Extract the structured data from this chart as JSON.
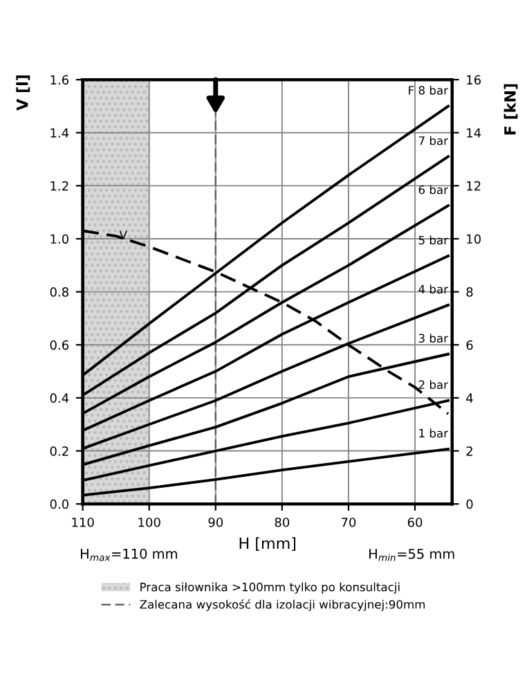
{
  "chart_data": {
    "type": "line",
    "xlabel": "H [mm]",
    "ylabel": "V [l]",
    "y2label": "F [kN]",
    "x": [
      110,
      100,
      90,
      80,
      70,
      55
    ],
    "series": [
      {
        "name": "F 8 bar",
        "color": "#000000",
        "axis": "y2",
        "values": [
          4.85,
          6.8,
          8.7,
          10.6,
          12.4,
          15.0
        ]
      },
      {
        "name": "7 bar",
        "color": "#000000",
        "axis": "y2",
        "values": [
          4.1,
          5.7,
          7.2,
          9.0,
          10.6,
          13.1
        ]
      },
      {
        "name": "6 bar",
        "color": "#000000",
        "axis": "y2",
        "values": [
          3.41,
          4.8,
          6.1,
          7.6,
          9.0,
          11.25
        ]
      },
      {
        "name": "5 bar",
        "color": "#000000",
        "axis": "y2",
        "values": [
          2.77,
          3.9,
          5.0,
          6.4,
          7.6,
          9.35
        ]
      },
      {
        "name": "4 bar",
        "color": "#000000",
        "axis": "y2",
        "values": [
          2.09,
          3.0,
          3.9,
          5.0,
          6.05,
          7.5
        ]
      },
      {
        "name": "3 bar",
        "color": "#000000",
        "axis": "y2",
        "values": [
          1.48,
          2.2,
          2.9,
          3.8,
          4.8,
          5.65
        ]
      },
      {
        "name": "2 bar",
        "color": "#000000",
        "axis": "y2",
        "values": [
          0.89,
          1.45,
          2.0,
          2.55,
          3.05,
          3.9
        ]
      },
      {
        "name": "1 bar",
        "color": "#000000",
        "axis": "y2",
        "values": [
          0.33,
          0.6,
          0.92,
          1.28,
          1.6,
          2.07
        ]
      },
      {
        "name": "V",
        "color": "#000000",
        "line_style": "dashed",
        "x": [
          110,
          105,
          100,
          90,
          80,
          75,
          70,
          64,
          60,
          55
        ],
        "values": [
          1.03,
          1.01,
          0.97,
          0.875,
          0.76,
          0.69,
          0.6,
          0.5,
          0.44,
          0.34
        ]
      }
    ],
    "xlim": [
      110,
      54.4
    ],
    "xticks": [
      110,
      100,
      90,
      80,
      70,
      60
    ],
    "ylim": [
      0.0,
      1.6
    ],
    "yticks": [
      {
        "value": 0,
        "label": "0.0"
      },
      0.2,
      0.4,
      0.6,
      0.8,
      {
        "value": 1,
        "label": "1.0"
      },
      1.2,
      1.4,
      1.6
    ],
    "y2lim": [
      0,
      16
    ],
    "y2ticks": [
      0,
      2,
      4,
      6,
      8,
      10,
      12,
      14,
      16
    ],
    "grid": true,
    "legend": "bottom",
    "line_style": "solid",
    "marker": "none",
    "bands": [
      {
        "axis": "x",
        "from": 110,
        "to": 100,
        "label": "Praca siłownika >100mm tylko po konsultacji",
        "color": "#d8d8d8"
      }
    ],
    "ref_lines": [
      {
        "axis": "x",
        "value": 90,
        "label": "Zalecana wysokość dla izolacji wibracyjnej:90mm",
        "color": "#555555",
        "line_style": "dashed"
      }
    ],
    "annotations": [
      "H$_{max}$=110 mm",
      "H$_{min}$=55 mm"
    ]
  }
}
